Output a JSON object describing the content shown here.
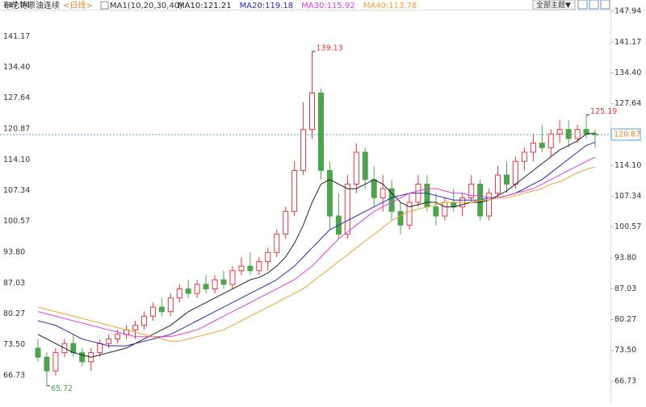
{
  "chart_data": {
    "type": "candlestick",
    "title": "布伦特原油连续",
    "period": "<日线>",
    "indicator": "MA1(10,20,30,40)",
    "theme_button": "全部主题▼",
    "up_color": "#e0393e",
    "down_color": "#4ea44e",
    "ylim": [
      66.73,
      147.94
    ],
    "yticks": [
      147.94,
      141.17,
      {
        "value": 134.4,
        "label": "134.40"
      },
      127.64,
      120.87,
      {
        "value": 114.1,
        "label": "114.10"
      },
      107.34,
      100.57,
      {
        "value": 93.8,
        "label": "93.80"
      },
      87.03,
      80.27,
      {
        "value": 73.5,
        "label": "73.50"
      },
      66.73
    ],
    "current_price": 120.87,
    "annotations": [
      "139.13",
      "125.19",
      "65.72"
    ],
    "candles": {
      "open": [
        74,
        72,
        69,
        73,
        75,
        73,
        71,
        73,
        75,
        76,
        77,
        78,
        79,
        81,
        83,
        82,
        85,
        87,
        86,
        88,
        87,
        89,
        88,
        91,
        92,
        91,
        93,
        95,
        99,
        104,
        113,
        122,
        130,
        113,
        103,
        99,
        110,
        117,
        111,
        107,
        109,
        104,
        101,
        106,
        110,
        105,
        103,
        106,
        105,
        107,
        110,
        103,
        108,
        112,
        110,
        115,
        117,
        119,
        118,
        121,
        122,
        120,
        122,
        121
      ],
      "high": [
        76,
        73,
        74,
        76,
        77,
        74,
        74,
        76,
        77,
        78,
        79,
        80,
        82,
        84,
        85,
        86,
        88,
        89,
        89,
        90,
        90,
        91,
        92,
        94,
        95,
        94,
        96,
        100,
        105,
        115,
        128,
        139.13,
        131,
        115,
        108,
        112,
        119,
        118,
        114,
        112,
        111,
        106,
        108,
        112,
        112,
        108,
        107,
        109,
        108,
        112,
        111,
        109,
        114,
        115,
        116,
        118,
        121,
        123,
        122,
        124,
        124,
        123,
        125.19,
        122
      ],
      "low": [
        71,
        65.72,
        68,
        72,
        72,
        70,
        69,
        72,
        74,
        75,
        76,
        76,
        78,
        80,
        81,
        81,
        84,
        85,
        85,
        86,
        86,
        87,
        87,
        90,
        90,
        90,
        91,
        94,
        98,
        103,
        112,
        120,
        111,
        100,
        98,
        98,
        108,
        109,
        105,
        104,
        102,
        99,
        100,
        105,
        104,
        101,
        102,
        104,
        103,
        106,
        102,
        102,
        107,
        108,
        109,
        113,
        115,
        117,
        116,
        119,
        118,
        119,
        120,
        118
      ],
      "close": [
        72,
        69,
        73,
        75,
        73,
        71,
        73,
        75,
        76,
        77,
        78,
        79,
        81,
        83,
        82,
        85,
        87,
        86,
        88,
        87,
        89,
        88,
        91,
        92,
        91,
        93,
        95,
        99,
        104,
        113,
        122,
        130,
        113,
        103,
        99,
        110,
        117,
        111,
        107,
        109,
        104,
        101,
        106,
        110,
        105,
        103,
        106,
        105,
        107,
        110,
        103,
        108,
        112,
        110,
        115,
        117,
        119,
        118,
        121,
        122,
        120,
        122,
        121,
        120.87
      ]
    },
    "series": [
      {
        "name": "MA10:121.21",
        "color": "#222222",
        "values": [
          77,
          76,
          75,
          74,
          73,
          72.5,
          72,
          72.5,
          73,
          73.5,
          74,
          75,
          76,
          77,
          78,
          79,
          80.5,
          82,
          83,
          84,
          85,
          86,
          87,
          88,
          89,
          89.5,
          90.5,
          92,
          94,
          97,
          101,
          106,
          110,
          111,
          110,
          109,
          109,
          110,
          111,
          110,
          108,
          106,
          105,
          105.5,
          106,
          106,
          105,
          105,
          105.5,
          106,
          106,
          106.5,
          107.5,
          108.5,
          110,
          111.5,
          113,
          114.5,
          116,
          117.5,
          118.5,
          119.5,
          121,
          121.21
        ]
      },
      {
        "name": "MA20:119.18",
        "color": "#2b2bb0",
        "values": [
          80,
          79.5,
          79,
          78,
          77,
          76,
          75.5,
          75,
          74.5,
          74.5,
          74.5,
          75,
          75.5,
          76,
          76.5,
          77,
          78,
          79,
          80,
          81,
          82,
          83,
          84,
          85,
          86,
          87,
          88,
          89,
          90.5,
          92,
          94,
          96,
          98,
          100,
          101,
          102,
          103,
          104,
          105,
          106,
          107,
          107.5,
          108,
          108,
          108,
          107.5,
          107,
          106.5,
          106.5,
          106.5,
          106.5,
          107,
          107,
          107.5,
          108,
          109,
          110,
          111,
          112.5,
          114,
          115.5,
          117,
          118.5,
          119.18
        ]
      },
      {
        "name": "MA30:115.92",
        "color": "#e03ce0",
        "values": [
          82,
          81.5,
          81,
          80.5,
          80,
          79.5,
          79,
          78.5,
          78,
          77.5,
          77,
          76.5,
          76.5,
          76.5,
          76.5,
          76.5,
          77,
          77.5,
          78,
          79,
          80,
          81,
          82,
          83,
          84,
          85,
          86,
          87,
          88,
          89,
          90.5,
          92,
          94,
          96,
          98,
          99.5,
          101,
          102.5,
          104,
          105,
          106,
          107,
          108,
          108.5,
          109,
          109,
          108.5,
          108,
          108,
          107.5,
          107.5,
          107,
          107,
          107.5,
          108,
          108.5,
          109,
          110,
          111,
          112,
          113,
          114,
          115,
          115.92
        ]
      },
      {
        "name": "MA40:113.78",
        "color": "#f0a030",
        "values": [
          83,
          82.5,
          82,
          81.5,
          81,
          80.5,
          80,
          79.5,
          79,
          78.5,
          78,
          77.5,
          77,
          76.5,
          76,
          75.5,
          75.5,
          76,
          76.5,
          77,
          77.5,
          78,
          79,
          80,
          81,
          82,
          83,
          84,
          85,
          86,
          87,
          88.5,
          90,
          91.5,
          93,
          94.5,
          96,
          97.5,
          99,
          100.5,
          102,
          103,
          104,
          104.5,
          105,
          105.5,
          106,
          106,
          106,
          106,
          106.5,
          106.5,
          107,
          107,
          107.5,
          108,
          108.5,
          109,
          110,
          110.5,
          111.5,
          112.5,
          113.2,
          113.78
        ]
      }
    ]
  }
}
